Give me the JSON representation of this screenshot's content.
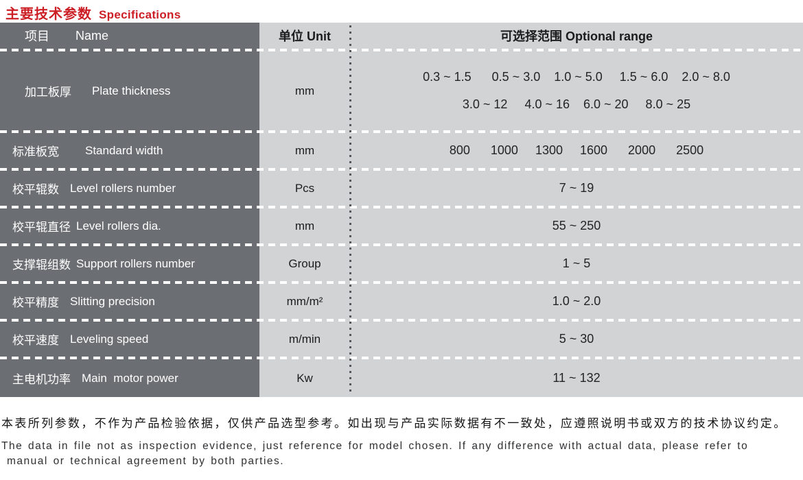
{
  "title": {
    "zh": "主要技术参数",
    "en": "Specifications"
  },
  "table": {
    "header": {
      "name_zh": "项目",
      "name_en": "Name",
      "unit": "单位 Unit",
      "range": "可选择范围 Optional range"
    },
    "rows": [
      {
        "zh": "加工板厚",
        "en": "Plate thickness",
        "unit": "mm",
        "range_line1": "0.3 ~ 1.5      0.5 ~ 3.0    1.0 ~ 5.0     1.5 ~ 6.0    2.0 ~ 8.0",
        "range_line2": "3.0 ~ 12     4.0 ~ 16    6.0 ~ 20     8.0 ~ 25"
      },
      {
        "zh": "标准板宽",
        "en": "Standard width",
        "unit": "mm",
        "range": "800      1000     1300     1600      2000      2500"
      },
      {
        "zh": "校平辊数",
        "en": "Level rollers number",
        "unit": "Pcs",
        "range": "7 ~ 19"
      },
      {
        "zh": "校平辊直径",
        "en": "Level rollers dia.",
        "unit": "mm",
        "range": "55 ~ 250"
      },
      {
        "zh": "支撑辊组数",
        "en": "Support rollers number",
        "unit": "Group",
        "range": "1 ~ 5"
      },
      {
        "zh": "校平精度",
        "en": "Slitting precision",
        "unit": "mm/m²",
        "range": "1.0 ~ 2.0"
      },
      {
        "zh": "校平速度",
        "en": "Leveling speed",
        "unit": "m/min",
        "range": "5 ~ 30"
      },
      {
        "zh": "主电机功率",
        "en": "Main  motor power",
        "unit": "Kw",
        "range": "11 ~ 132"
      }
    ]
  },
  "footer": {
    "zh": "本表所列参数，不作为产品检验依据，仅供产品选型参考。如出现与产品实际数据有不一致处，应遵照说明书或双方的技术协议约定。",
    "en_line1": "The data in file not as inspection evidence, just reference for model chosen. If any difference with actual data, please refer to",
    "en_line2": "manual or technical agreement by both parties."
  },
  "colors": {
    "accent_red": "#cc1f25",
    "dark_cell": "#6b6e72",
    "light_cell": "#d2d3d5"
  }
}
